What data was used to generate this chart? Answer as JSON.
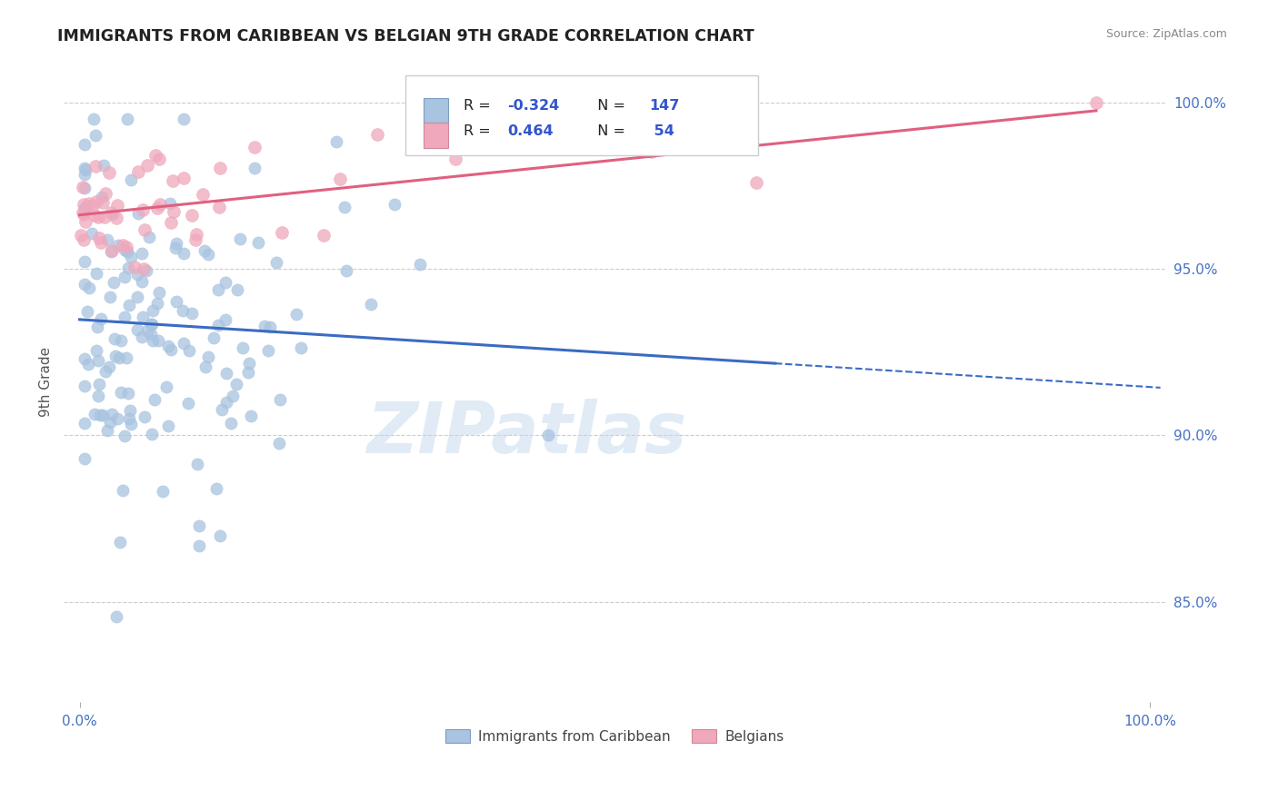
{
  "title": "IMMIGRANTS FROM CARIBBEAN VS BELGIAN 9TH GRADE CORRELATION CHART",
  "source": "Source: ZipAtlas.com",
  "ylabel": "9th Grade",
  "color_blue": "#a8c4e0",
  "color_pink": "#f0a8bc",
  "line_blue": "#3a6bc4",
  "line_pink": "#e06080",
  "watermark": "ZIPatlas",
  "yticks": [
    0.85,
    0.9,
    0.95,
    1.0
  ],
  "ytick_labels": [
    "85.0%",
    "90.0%",
    "95.0%",
    "100.0%"
  ],
  "xtick_labels": [
    "0.0%",
    "100.0%"
  ],
  "legend_r1_val": "-0.324",
  "legend_n1_val": "147",
  "legend_r2_val": "0.464",
  "legend_n2_val": "54"
}
